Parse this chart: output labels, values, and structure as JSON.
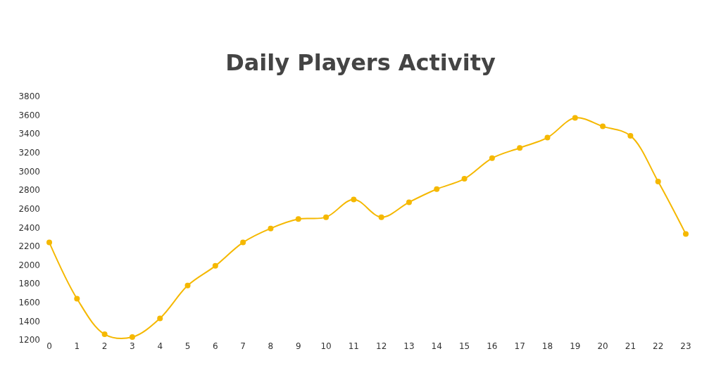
{
  "chart_data": {
    "type": "line",
    "title": "Daily Players Activity",
    "x": [
      0,
      1,
      2,
      3,
      4,
      5,
      6,
      7,
      8,
      9,
      10,
      11,
      12,
      13,
      14,
      15,
      16,
      17,
      18,
      19,
      20,
      21,
      22,
      23
    ],
    "series": [
      {
        "color": "#f5b800",
        "values": [
          2240,
          1640,
          1260,
          1230,
          1430,
          1780,
          1990,
          2240,
          2390,
          2490,
          2510,
          2700,
          2510,
          2670,
          2810,
          2920,
          3140,
          3250,
          3360,
          3570,
          3480,
          3380,
          2890,
          2330
        ]
      }
    ],
    "xlim": [
      0,
      23
    ],
    "xticks": [
      0,
      1,
      2,
      3,
      4,
      5,
      6,
      7,
      8,
      9,
      10,
      11,
      12,
      13,
      14,
      15,
      16,
      17,
      18,
      19,
      20,
      21,
      22,
      23
    ],
    "ylim": [
      1200,
      3800
    ],
    "yticks": [
      1200,
      1400,
      1600,
      1800,
      2000,
      2200,
      2400,
      2600,
      2800,
      3000,
      3200,
      3400,
      3600,
      3800
    ],
    "marker": "circle",
    "line_style": "solid"
  }
}
